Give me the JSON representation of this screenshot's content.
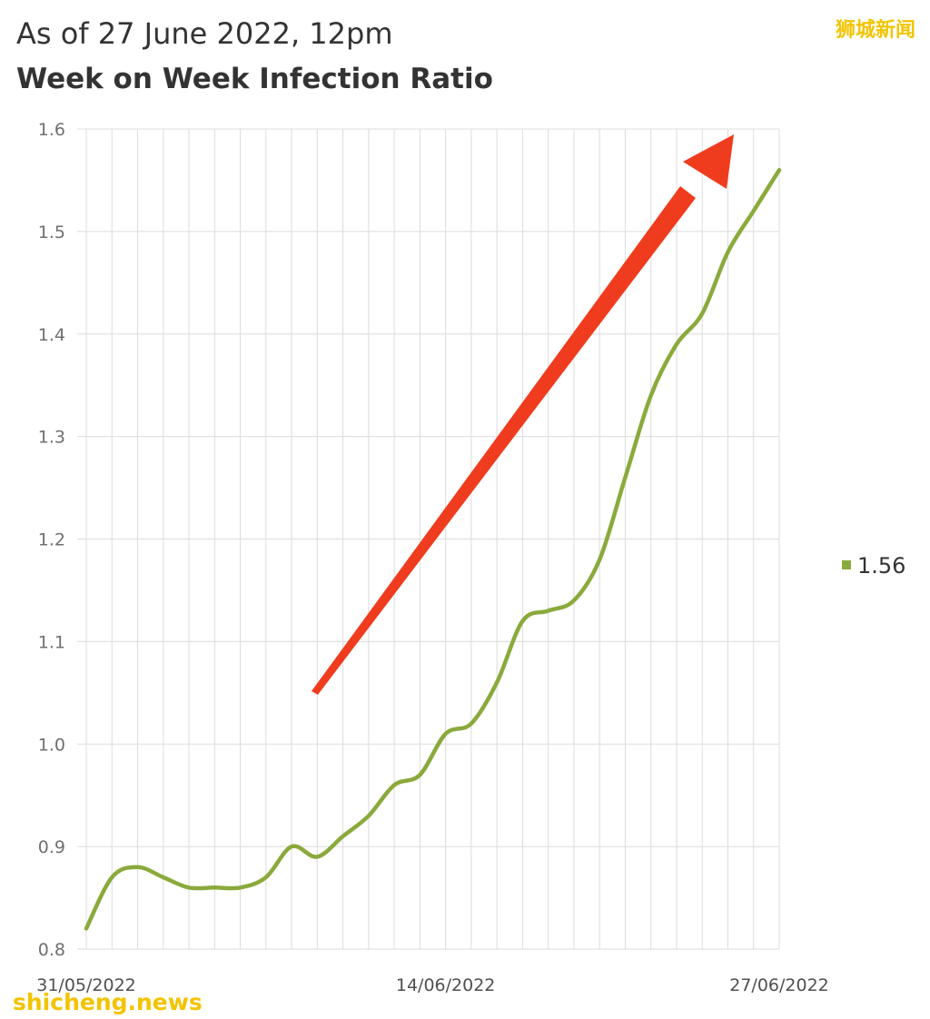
{
  "header": {
    "subtitle": "As of 27 June 2022, 12pm",
    "title": "Week on Week Infection Ratio"
  },
  "watermarks": {
    "top_right": "狮城新闻",
    "bottom_left": "shicheng.news"
  },
  "chart_data": {
    "type": "line",
    "title": "Week on Week Infection Ratio",
    "subtitle": "As of 27 June 2022, 12pm",
    "xlabel": "",
    "ylabel": "",
    "ylim": [
      0.8,
      1.6
    ],
    "yticks": [
      "0.8",
      "0.9",
      "1.0",
      "1.1",
      "1.2",
      "1.3",
      "1.4",
      "1.5",
      "1.6"
    ],
    "xtick_labels": [
      "31/05/2022",
      "14/06/2022",
      "27/06/2022"
    ],
    "x": [
      "31/05/2022",
      "01/06/2022",
      "02/06/2022",
      "03/06/2022",
      "04/06/2022",
      "05/06/2022",
      "06/06/2022",
      "07/06/2022",
      "08/06/2022",
      "09/06/2022",
      "10/06/2022",
      "11/06/2022",
      "12/06/2022",
      "13/06/2022",
      "14/06/2022",
      "15/06/2022",
      "16/06/2022",
      "17/06/2022",
      "18/06/2022",
      "19/06/2022",
      "20/06/2022",
      "21/06/2022",
      "22/06/2022",
      "23/06/2022",
      "24/06/2022",
      "25/06/2022",
      "26/06/2022",
      "27/06/2022"
    ],
    "series": [
      {
        "name": "1.56",
        "color": "#8aaa3c",
        "values": [
          0.82,
          0.87,
          0.88,
          0.87,
          0.86,
          0.86,
          0.86,
          0.87,
          0.9,
          0.89,
          0.91,
          0.93,
          0.96,
          0.97,
          1.01,
          1.02,
          1.06,
          1.12,
          1.13,
          1.14,
          1.18,
          1.26,
          1.34,
          1.39,
          1.42,
          1.48,
          1.52,
          1.56
        ]
      }
    ],
    "grid": true,
    "legend": "right",
    "annotation": {
      "type": "arrow",
      "color": "#f03c1e",
      "direction": "up-right"
    }
  }
}
